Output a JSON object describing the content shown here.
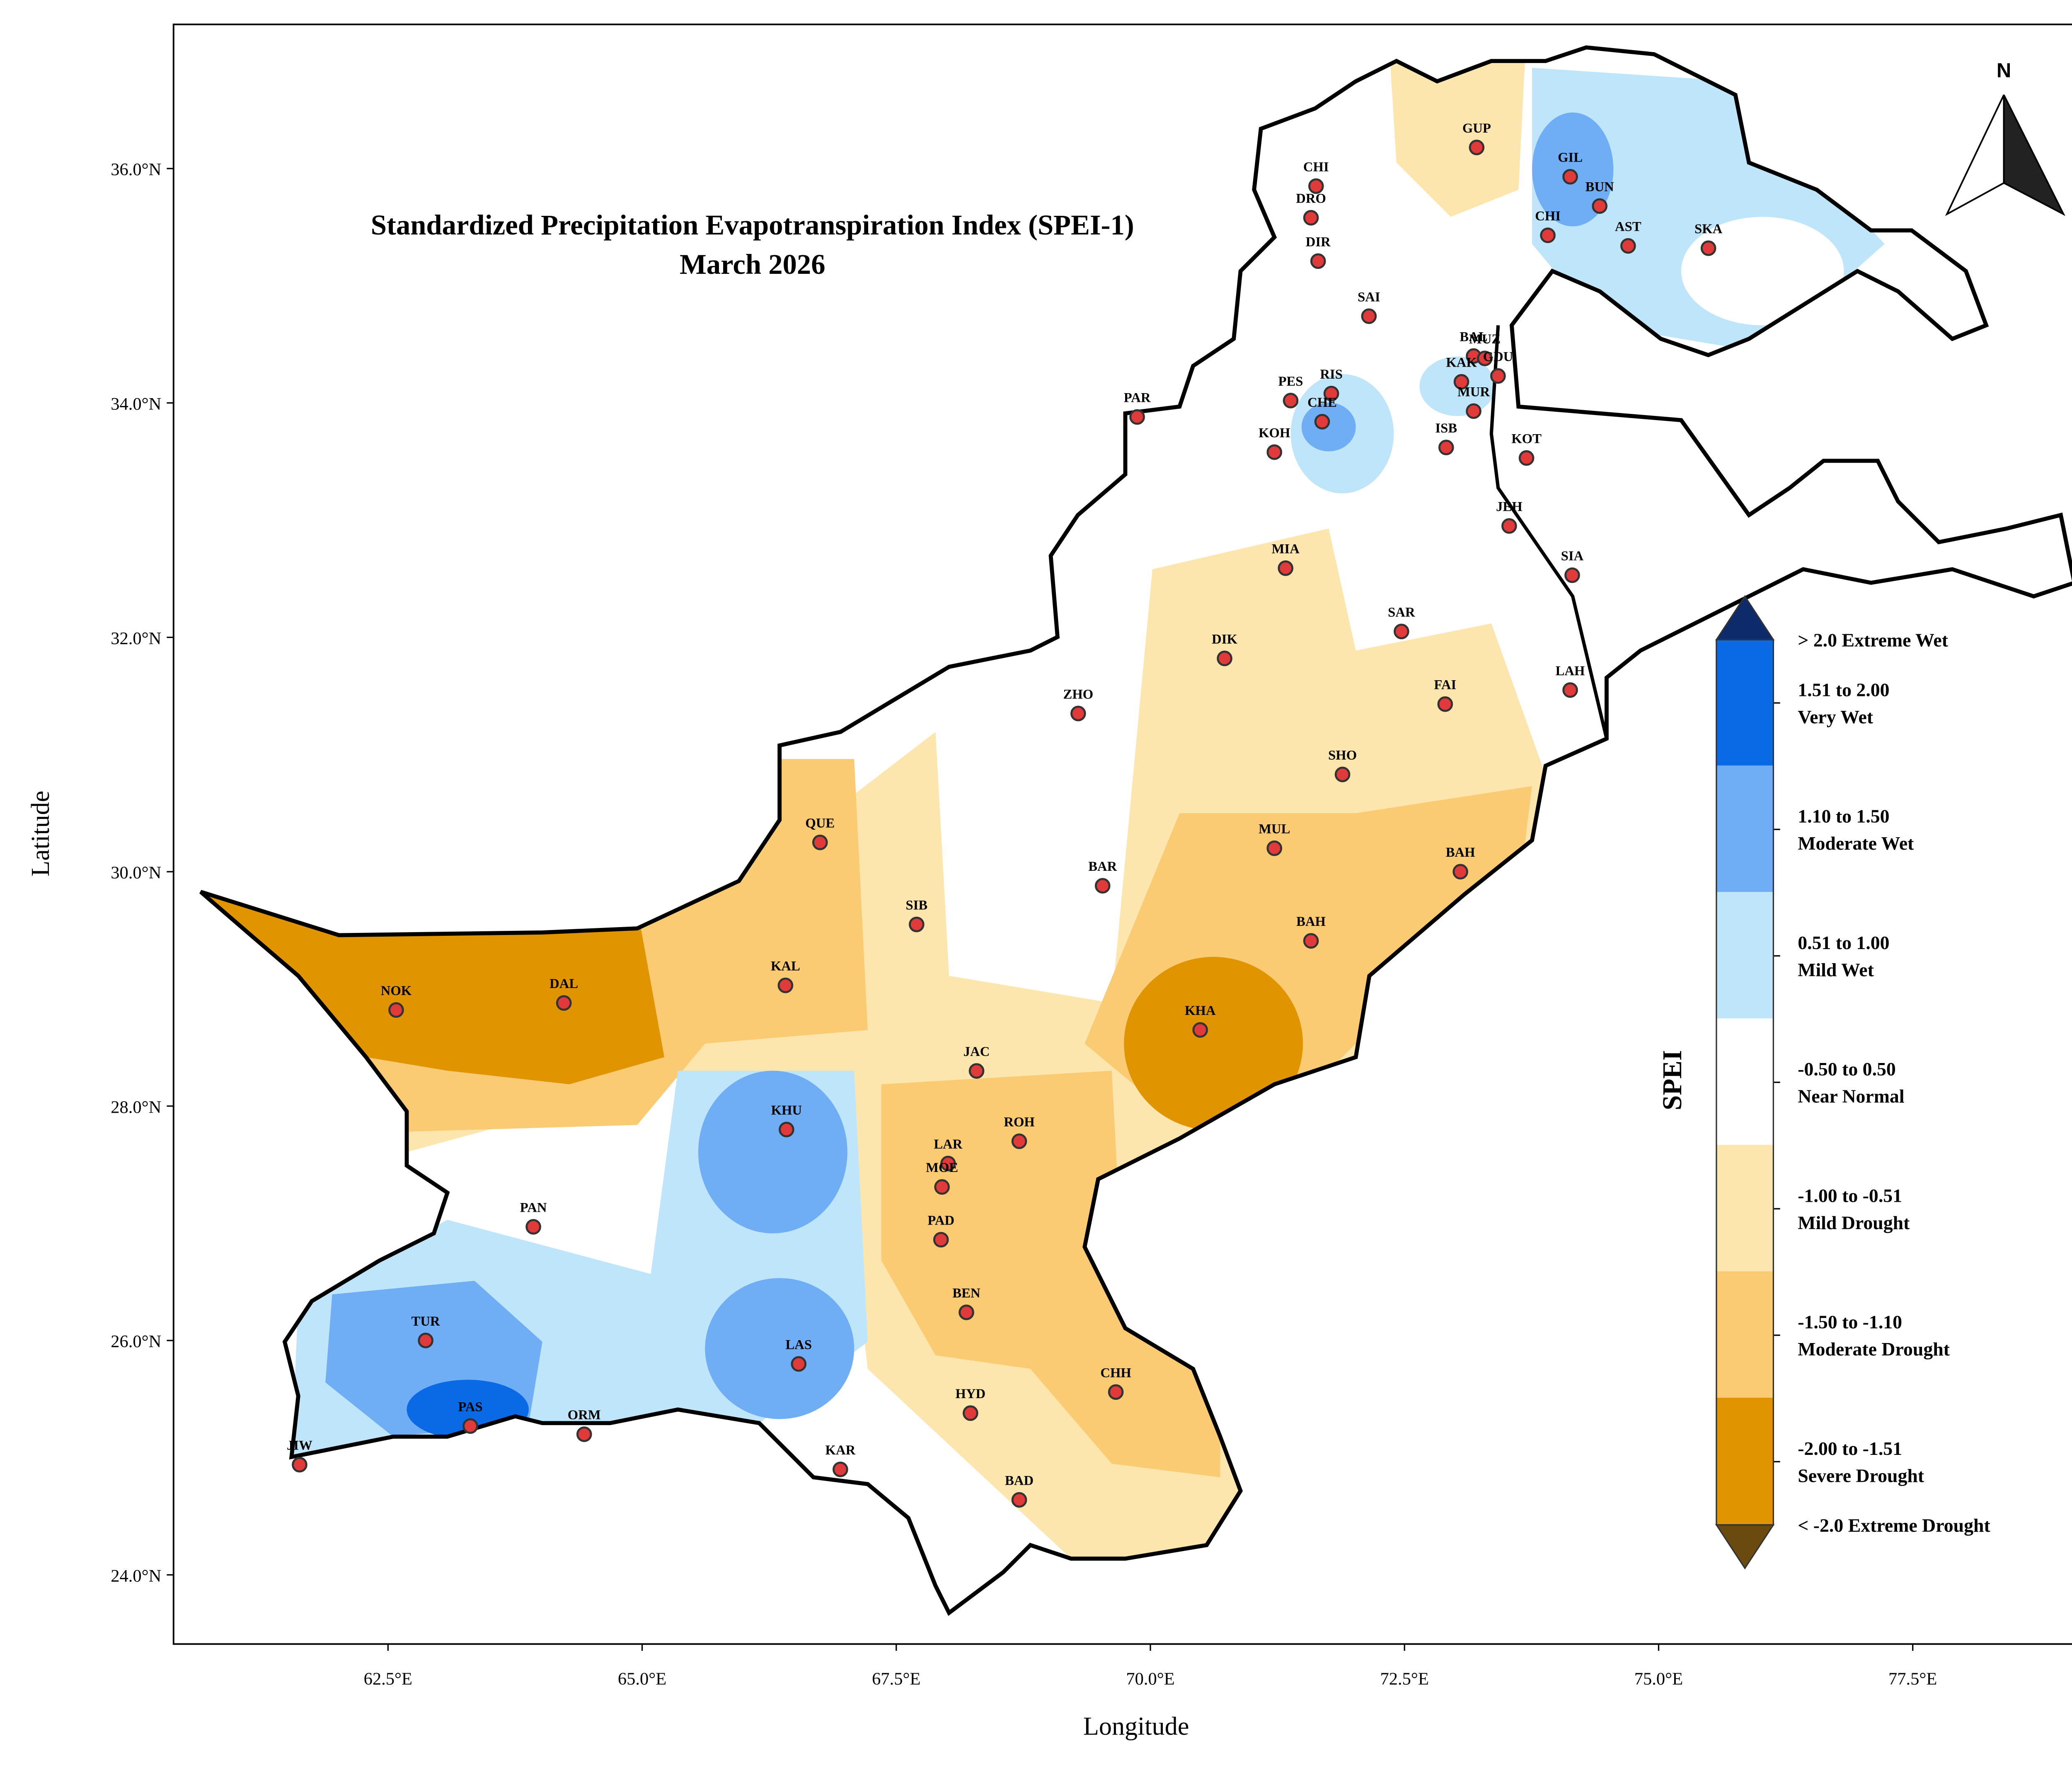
{
  "map": {
    "title": "Standardized Precipitation Evapotranspiration Index (SPEI-1)",
    "subtitle": "March 2026",
    "x_label": "Longitude",
    "y_label": "Latitude",
    "north_label": "N",
    "xlim": [
      60.39,
      79.33
    ],
    "ylim": [
      23.41,
      37.23
    ],
    "xticks": [
      {
        "value": 62.5,
        "label": "62.5°E"
      },
      {
        "value": 65,
        "label": "65.0°E"
      },
      {
        "value": 67.5,
        "label": "67.5°E"
      },
      {
        "value": 70,
        "label": "70.0°E"
      },
      {
        "value": 72.5,
        "label": "72.5°E"
      },
      {
        "value": 75,
        "label": "75.0°E"
      },
      {
        "value": 77.5,
        "label": "77.5°E"
      }
    ],
    "yticks": [
      {
        "value": 24,
        "label": "24.0°N"
      },
      {
        "value": 26,
        "label": "26.0°N"
      },
      {
        "value": 28,
        "label": "28.0°N"
      },
      {
        "value": 30,
        "label": "30.0°N"
      },
      {
        "value": 32,
        "label": "32.0°N"
      },
      {
        "value": 34,
        "label": "34.0°N"
      },
      {
        "value": 36,
        "label": "36.0°N"
      }
    ],
    "station_color": "#e03a3a",
    "stations": [
      {
        "code": "CHI",
        "lon": 71.63,
        "lat": 35.85
      },
      {
        "code": "DRO",
        "lon": 71.58,
        "lat": 35.58
      },
      {
        "code": "DIR",
        "lon": 71.65,
        "lat": 35.21
      },
      {
        "code": "GUP",
        "lon": 73.21,
        "lat": 36.18
      },
      {
        "code": "GIL",
        "lon": 74.13,
        "lat": 35.93
      },
      {
        "code": "BUN",
        "lon": 74.42,
        "lat": 35.68
      },
      {
        "code": "CHI",
        "lon": 73.91,
        "lat": 35.43
      },
      {
        "code": "AST",
        "lon": 74.7,
        "lat": 35.34
      },
      {
        "code": "SKA",
        "lon": 75.49,
        "lat": 35.32
      },
      {
        "code": "SAI",
        "lon": 72.15,
        "lat": 34.74
      },
      {
        "code": "BAL",
        "lon": 73.18,
        "lat": 34.4
      },
      {
        "code": "MUZ",
        "lon": 73.29,
        "lat": 34.38
      },
      {
        "code": "GDU",
        "lon": 73.42,
        "lat": 34.23
      },
      {
        "code": "KAK",
        "lon": 73.06,
        "lat": 34.18
      },
      {
        "code": "MUR",
        "lon": 73.18,
        "lat": 33.93
      },
      {
        "code": "ISB",
        "lon": 72.91,
        "lat": 33.62
      },
      {
        "code": "PES",
        "lon": 71.38,
        "lat": 34.02
      },
      {
        "code": "RIS",
        "lon": 71.78,
        "lat": 34.08
      },
      {
        "code": "CHE",
        "lon": 71.69,
        "lat": 33.84
      },
      {
        "code": "KOH",
        "lon": 71.22,
        "lat": 33.58
      },
      {
        "code": "PAR",
        "lon": 69.87,
        "lat": 33.88
      },
      {
        "code": "KOT",
        "lon": 73.7,
        "lat": 33.53
      },
      {
        "code": "JEH",
        "lon": 73.53,
        "lat": 32.95
      },
      {
        "code": "SIA",
        "lon": 74.15,
        "lat": 32.53
      },
      {
        "code": "MIA",
        "lon": 71.33,
        "lat": 32.59
      },
      {
        "code": "SAR",
        "lon": 72.47,
        "lat": 32.05
      },
      {
        "code": "DIK",
        "lon": 70.73,
        "lat": 31.82
      },
      {
        "code": "FAI",
        "lon": 72.9,
        "lat": 31.43
      },
      {
        "code": "LAH",
        "lon": 74.13,
        "lat": 31.55
      },
      {
        "code": "ZHO",
        "lon": 69.29,
        "lat": 31.35
      },
      {
        "code": "SHO",
        "lon": 71.89,
        "lat": 30.83
      },
      {
        "code": "QUE",
        "lon": 66.75,
        "lat": 30.25
      },
      {
        "code": "MUL",
        "lon": 71.22,
        "lat": 30.2
      },
      {
        "code": "BAH",
        "lon": 73.05,
        "lat": 30.0
      },
      {
        "code": "BAR",
        "lon": 69.53,
        "lat": 29.88
      },
      {
        "code": "SIB",
        "lon": 67.7,
        "lat": 29.55
      },
      {
        "code": "BAH",
        "lon": 71.58,
        "lat": 29.41
      },
      {
        "code": "KAL",
        "lon": 66.41,
        "lat": 29.03
      },
      {
        "code": "NOK",
        "lon": 62.58,
        "lat": 28.82
      },
      {
        "code": "DAL",
        "lon": 64.23,
        "lat": 28.88
      },
      {
        "code": "KHA",
        "lon": 70.49,
        "lat": 28.65
      },
      {
        "code": "JAC",
        "lon": 68.29,
        "lat": 28.3
      },
      {
        "code": "KHU",
        "lon": 66.42,
        "lat": 27.8
      },
      {
        "code": "LAR",
        "lon": 68.01,
        "lat": 27.51
      },
      {
        "code": "ROH",
        "lon": 68.71,
        "lat": 27.7
      },
      {
        "code": "MOE",
        "lon": 67.95,
        "lat": 27.31
      },
      {
        "code": "PAD",
        "lon": 67.94,
        "lat": 26.86
      },
      {
        "code": "PAN",
        "lon": 63.93,
        "lat": 26.97
      },
      {
        "code": "BEN",
        "lon": 68.19,
        "lat": 26.24
      },
      {
        "code": "TUR",
        "lon": 62.87,
        "lat": 26.0
      },
      {
        "code": "LAS",
        "lon": 66.54,
        "lat": 25.8
      },
      {
        "code": "CHH",
        "lon": 69.66,
        "lat": 25.56
      },
      {
        "code": "PAS",
        "lon": 63.31,
        "lat": 25.27
      },
      {
        "code": "ORM",
        "lon": 64.43,
        "lat": 25.2
      },
      {
        "code": "HYD",
        "lon": 68.23,
        "lat": 25.38
      },
      {
        "code": "JIW",
        "lon": 61.63,
        "lat": 24.94
      },
      {
        "code": "KAR",
        "lon": 66.95,
        "lat": 24.9
      },
      {
        "code": "BAD",
        "lon": 68.71,
        "lat": 24.64
      }
    ],
    "legend": {
      "title": "SPEI",
      "items": [
        {
          "lines": [
            "> 2.0 Extreme Wet"
          ],
          "color": "#0d2a6b"
        },
        {
          "lines": [
            "1.51 to 2.00",
            "Very Wet"
          ],
          "color": "#0a6ae6"
        },
        {
          "lines": [
            "1.10 to 1.50",
            "Moderate Wet"
          ],
          "color": "#6fadf5"
        },
        {
          "lines": [
            "0.51 to 1.00",
            "Mild Wet"
          ],
          "color": "#bfe5fb"
        },
        {
          "lines": [
            "-0.50 to 0.50",
            "Near Normal"
          ],
          "color": "#ffffff"
        },
        {
          "lines": [
            "-1.00 to -0.51",
            "Mild Drought"
          ],
          "color": "#fde6ad"
        },
        {
          "lines": [
            "-1.50 to -1.10",
            "Moderate Drought"
          ],
          "color": "#fbcb73"
        },
        {
          "lines": [
            "-2.00 to -1.51",
            "Severe Drought"
          ],
          "color": "#e09400"
        },
        {
          "lines": [
            "< -2.0 Extreme Drought"
          ],
          "color": "#6b4a10"
        }
      ]
    }
  }
}
